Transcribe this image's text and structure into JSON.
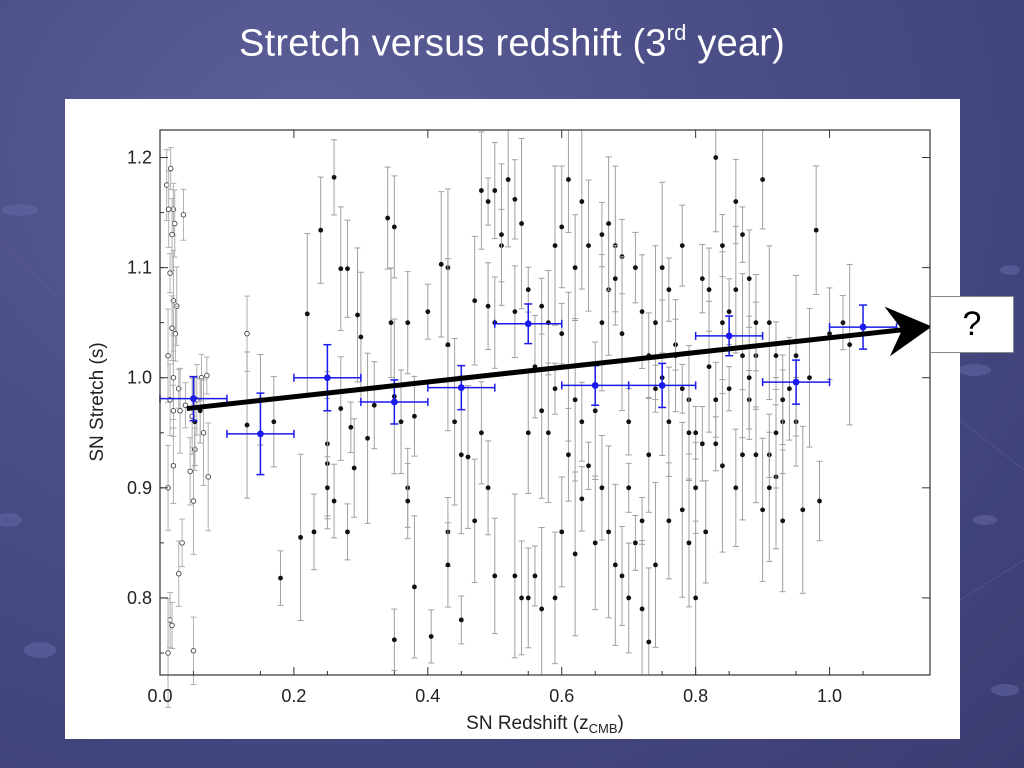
{
  "slide": {
    "title_main": "Stretch versus redshift (3",
    "title_sup": "rd",
    "title_end": " year)"
  },
  "callout": {
    "text": "?"
  },
  "colors": {
    "background": "#4a4c86",
    "binned": "#1a1aee",
    "points": "#111111",
    "errorbars": "#a0a0a0",
    "arrow": "#000000"
  },
  "chart_data": {
    "type": "scatter",
    "title": "Stretch versus redshift (3rd year)",
    "xlabel": "SN Redshift (z",
    "xlabel_sub": "CMB",
    "xlabel_end": ")",
    "ylabel": "SN Stretch (s)",
    "xlim": [
      0.0,
      1.15
    ],
    "ylim": [
      0.73,
      1.225
    ],
    "xticks": [
      "0.0",
      "0.2",
      "0.4",
      "0.6",
      "0.8",
      "1.0"
    ],
    "yticks": [
      "0.8",
      "0.9",
      "1.0",
      "1.1",
      "1.2"
    ],
    "binned": [
      {
        "x": 0.05,
        "y": 0.981,
        "xerr": 0.05,
        "yerr": 0.02
      },
      {
        "x": 0.15,
        "y": 0.949,
        "xerr": 0.05,
        "yerr": 0.037
      },
      {
        "x": 0.25,
        "y": 1.0,
        "xerr": 0.05,
        "yerr": 0.03
      },
      {
        "x": 0.35,
        "y": 0.978,
        "xerr": 0.05,
        "yerr": 0.02
      },
      {
        "x": 0.45,
        "y": 0.991,
        "xerr": 0.05,
        "yerr": 0.02
      },
      {
        "x": 0.55,
        "y": 1.049,
        "xerr": 0.05,
        "yerr": 0.018
      },
      {
        "x": 0.65,
        "y": 0.993,
        "xerr": 0.05,
        "yerr": 0.018
      },
      {
        "x": 0.75,
        "y": 0.993,
        "xerr": 0.05,
        "yerr": 0.02
      },
      {
        "x": 0.85,
        "y": 1.038,
        "xerr": 0.05,
        "yerr": 0.018
      },
      {
        "x": 0.95,
        "y": 0.996,
        "xerr": 0.05,
        "yerr": 0.02
      },
      {
        "x": 1.05,
        "y": 1.046,
        "xerr": 0.05,
        "yerr": 0.02
      }
    ],
    "trend_arrow": {
      "x0": 0.04,
      "y0": 0.972,
      "x1": 1.15,
      "y1": 1.046
    },
    "lowz_points": [
      [
        0.01,
        1.175
      ],
      [
        0.013,
        1.153
      ],
      [
        0.016,
        1.19
      ],
      [
        0.02,
        1.153
      ],
      [
        0.022,
        1.14
      ],
      [
        0.018,
        1.13
      ],
      [
        0.015,
        1.095
      ],
      [
        0.02,
        1.07
      ],
      [
        0.025,
        1.065
      ],
      [
        0.018,
        1.045
      ],
      [
        0.023,
        1.04
      ],
      [
        0.012,
        1.02
      ],
      [
        0.02,
        1.0
      ],
      [
        0.028,
        0.99
      ],
      [
        0.015,
        0.98
      ],
      [
        0.02,
        0.97
      ],
      [
        0.03,
        0.97
      ],
      [
        0.038,
        0.975
      ],
      [
        0.048,
        0.965
      ],
      [
        0.055,
        0.98
      ],
      [
        0.062,
        1.0
      ],
      [
        0.07,
        1.002
      ],
      [
        0.065,
        0.95
      ],
      [
        0.072,
        0.91
      ],
      [
        0.052,
        0.935
      ],
      [
        0.045,
        0.915
      ],
      [
        0.05,
        0.888
      ],
      [
        0.033,
        0.85
      ],
      [
        0.028,
        0.822
      ],
      [
        0.02,
        0.92
      ],
      [
        0.012,
        0.9
      ],
      [
        0.015,
        0.78
      ],
      [
        0.018,
        0.775
      ],
      [
        0.012,
        0.75
      ],
      [
        0.05,
        0.752
      ],
      [
        0.035,
        1.148
      ],
      [
        0.13,
        1.04
      ]
    ],
    "points": [
      [
        0.052,
        0.96
      ],
      [
        0.06,
        0.97
      ],
      [
        0.13,
        0.957
      ],
      [
        0.15,
        0.98
      ],
      [
        0.17,
        0.96
      ],
      [
        0.18,
        0.818
      ],
      [
        0.21,
        0.855
      ],
      [
        0.23,
        0.86
      ],
      [
        0.22,
        1.058
      ],
      [
        0.24,
        1.134
      ],
      [
        0.26,
        1.182
      ],
      [
        0.27,
        1.099
      ],
      [
        0.28,
        1.099
      ],
      [
        0.25,
        0.94
      ],
      [
        0.25,
        0.922
      ],
      [
        0.25,
        0.9
      ],
      [
        0.26,
        0.888
      ],
      [
        0.27,
        0.972
      ],
      [
        0.28,
        0.86
      ],
      [
        0.285,
        0.955
      ],
      [
        0.29,
        0.918
      ],
      [
        0.295,
        1.057
      ],
      [
        0.3,
        1.037
      ],
      [
        0.31,
        0.945
      ],
      [
        0.32,
        0.975
      ],
      [
        0.34,
        1.145
      ],
      [
        0.345,
        1.05
      ],
      [
        0.35,
        1.137
      ],
      [
        0.35,
        0.983
      ],
      [
        0.36,
        0.96
      ],
      [
        0.37,
        1.05
      ],
      [
        0.37,
        0.9
      ],
      [
        0.37,
        0.888
      ],
      [
        0.38,
        0.81
      ],
      [
        0.35,
        0.762
      ],
      [
        0.38,
        0.965
      ],
      [
        0.42,
        1.103
      ],
      [
        0.43,
        1.1
      ],
      [
        0.43,
        1.03
      ],
      [
        0.44,
        0.96
      ],
      [
        0.45,
        0.93
      ],
      [
        0.46,
        0.928
      ],
      [
        0.47,
        1.07
      ],
      [
        0.48,
        1.17
      ],
      [
        0.49,
        1.16
      ],
      [
        0.49,
        1.065
      ],
      [
        0.5,
        1.05
      ],
      [
        0.51,
        1.12
      ],
      [
        0.5,
        1.17
      ],
      [
        0.52,
        1.18
      ],
      [
        0.51,
        1.13
      ],
      [
        0.53,
        1.162
      ],
      [
        0.54,
        1.14
      ],
      [
        0.55,
        1.08
      ],
      [
        0.53,
        1.06
      ],
      [
        0.55,
        0.95
      ],
      [
        0.56,
        1.01
      ],
      [
        0.57,
        1.065
      ],
      [
        0.57,
        0.97
      ],
      [
        0.58,
        1.05
      ],
      [
        0.59,
        1.12
      ],
      [
        0.6,
        1.137
      ],
      [
        0.61,
        1.18
      ],
      [
        0.6,
        1.04
      ],
      [
        0.61,
        1.01
      ],
      [
        0.62,
        0.98
      ],
      [
        0.63,
        0.96
      ],
      [
        0.64,
        0.92
      ],
      [
        0.63,
        0.89
      ],
      [
        0.65,
        0.97
      ],
      [
        0.66,
        1.05
      ],
      [
        0.67,
        1.08
      ],
      [
        0.68,
        1.12
      ],
      [
        0.69,
        1.11
      ],
      [
        0.69,
        1.04
      ],
      [
        0.7,
        0.96
      ],
      [
        0.7,
        0.9
      ],
      [
        0.71,
        0.85
      ],
      [
        0.72,
        0.87
      ],
      [
        0.73,
        0.93
      ],
      [
        0.74,
        1.05
      ],
      [
        0.75,
        1.0
      ],
      [
        0.76,
        1.08
      ],
      [
        0.76,
        0.96
      ],
      [
        0.77,
        1.03
      ],
      [
        0.78,
        1.12
      ],
      [
        0.79,
        0.98
      ],
      [
        0.8,
        0.95
      ],
      [
        0.8,
        0.9
      ],
      [
        0.81,
        0.94
      ],
      [
        0.82,
        1.08
      ],
      [
        0.83,
        1.2
      ],
      [
        0.84,
        1.12
      ],
      [
        0.85,
        1.06
      ],
      [
        0.85,
        0.99
      ],
      [
        0.86,
        1.08
      ],
      [
        0.87,
        1.13
      ],
      [
        0.88,
        1.09
      ],
      [
        0.88,
        0.98
      ],
      [
        0.89,
        1.02
      ],
      [
        0.9,
        1.18
      ],
      [
        0.91,
        0.93
      ],
      [
        0.92,
        0.91
      ],
      [
        0.93,
        0.96
      ],
      [
        0.93,
        0.87
      ],
      [
        0.95,
        0.96
      ],
      [
        0.96,
        0.88
      ],
      [
        0.97,
        1.0
      ],
      [
        0.98,
        1.134
      ],
      [
        0.985,
        0.888
      ],
      [
        1.0,
        1.04
      ],
      [
        1.02,
        1.05
      ],
      [
        1.03,
        1.03
      ],
      [
        0.4,
        1.06
      ],
      [
        0.405,
        0.765
      ],
      [
        0.43,
        0.86
      ],
      [
        0.43,
        0.83
      ],
      [
        0.45,
        0.78
      ],
      [
        0.47,
        0.87
      ],
      [
        0.48,
        0.95
      ],
      [
        0.49,
        0.9
      ],
      [
        0.5,
        0.82
      ],
      [
        0.53,
        0.82
      ],
      [
        0.54,
        0.8
      ],
      [
        0.55,
        0.8
      ],
      [
        0.56,
        0.82
      ],
      [
        0.57,
        0.79
      ],
      [
        0.59,
        0.8
      ],
      [
        0.6,
        0.86
      ],
      [
        0.62,
        0.84
      ],
      [
        0.65,
        0.85
      ],
      [
        0.66,
        0.9
      ],
      [
        0.67,
        0.86
      ],
      [
        0.68,
        0.83
      ],
      [
        0.69,
        0.82
      ],
      [
        0.7,
        0.8
      ],
      [
        0.72,
        0.79
      ],
      [
        0.73,
        0.76
      ],
      [
        0.74,
        0.83
      ],
      [
        0.76,
        0.87
      ],
      [
        0.78,
        0.88
      ],
      [
        0.79,
        0.85
      ],
      [
        0.8,
        0.8
      ],
      [
        0.815,
        0.86
      ],
      [
        0.83,
        0.94
      ],
      [
        0.84,
        0.92
      ],
      [
        0.86,
        0.9
      ],
      [
        0.87,
        0.93
      ],
      [
        0.89,
        0.93
      ],
      [
        0.9,
        0.88
      ],
      [
        0.91,
        0.9
      ],
      [
        0.92,
        0.95
      ],
      [
        0.94,
        0.99
      ],
      [
        0.95,
        1.02
      ],
      [
        0.58,
        0.95
      ],
      [
        0.59,
        0.99
      ],
      [
        0.61,
        0.93
      ],
      [
        0.62,
        1.1
      ],
      [
        0.63,
        1.16
      ],
      [
        0.64,
        1.12
      ],
      [
        0.66,
        1.13
      ],
      [
        0.67,
        1.14
      ],
      [
        0.68,
        1.09
      ],
      [
        0.71,
        1.1
      ],
      [
        0.72,
        1.06
      ],
      [
        0.73,
        1.02
      ],
      [
        0.74,
        0.99
      ],
      [
        0.75,
        1.1
      ],
      [
        0.77,
        1.02
      ],
      [
        0.78,
        0.99
      ],
      [
        0.79,
        0.95
      ],
      [
        0.81,
        1.09
      ],
      [
        0.82,
        1.01
      ],
      [
        0.83,
        0.98
      ],
      [
        0.84,
        1.05
      ],
      [
        0.86,
        1.16
      ],
      [
        0.87,
        1.02
      ],
      [
        0.88,
        1.0
      ],
      [
        0.89,
        1.05
      ],
      [
        0.91,
        1.05
      ],
      [
        0.92,
        1.02
      ],
      [
        0.93,
        0.98
      ]
    ]
  }
}
